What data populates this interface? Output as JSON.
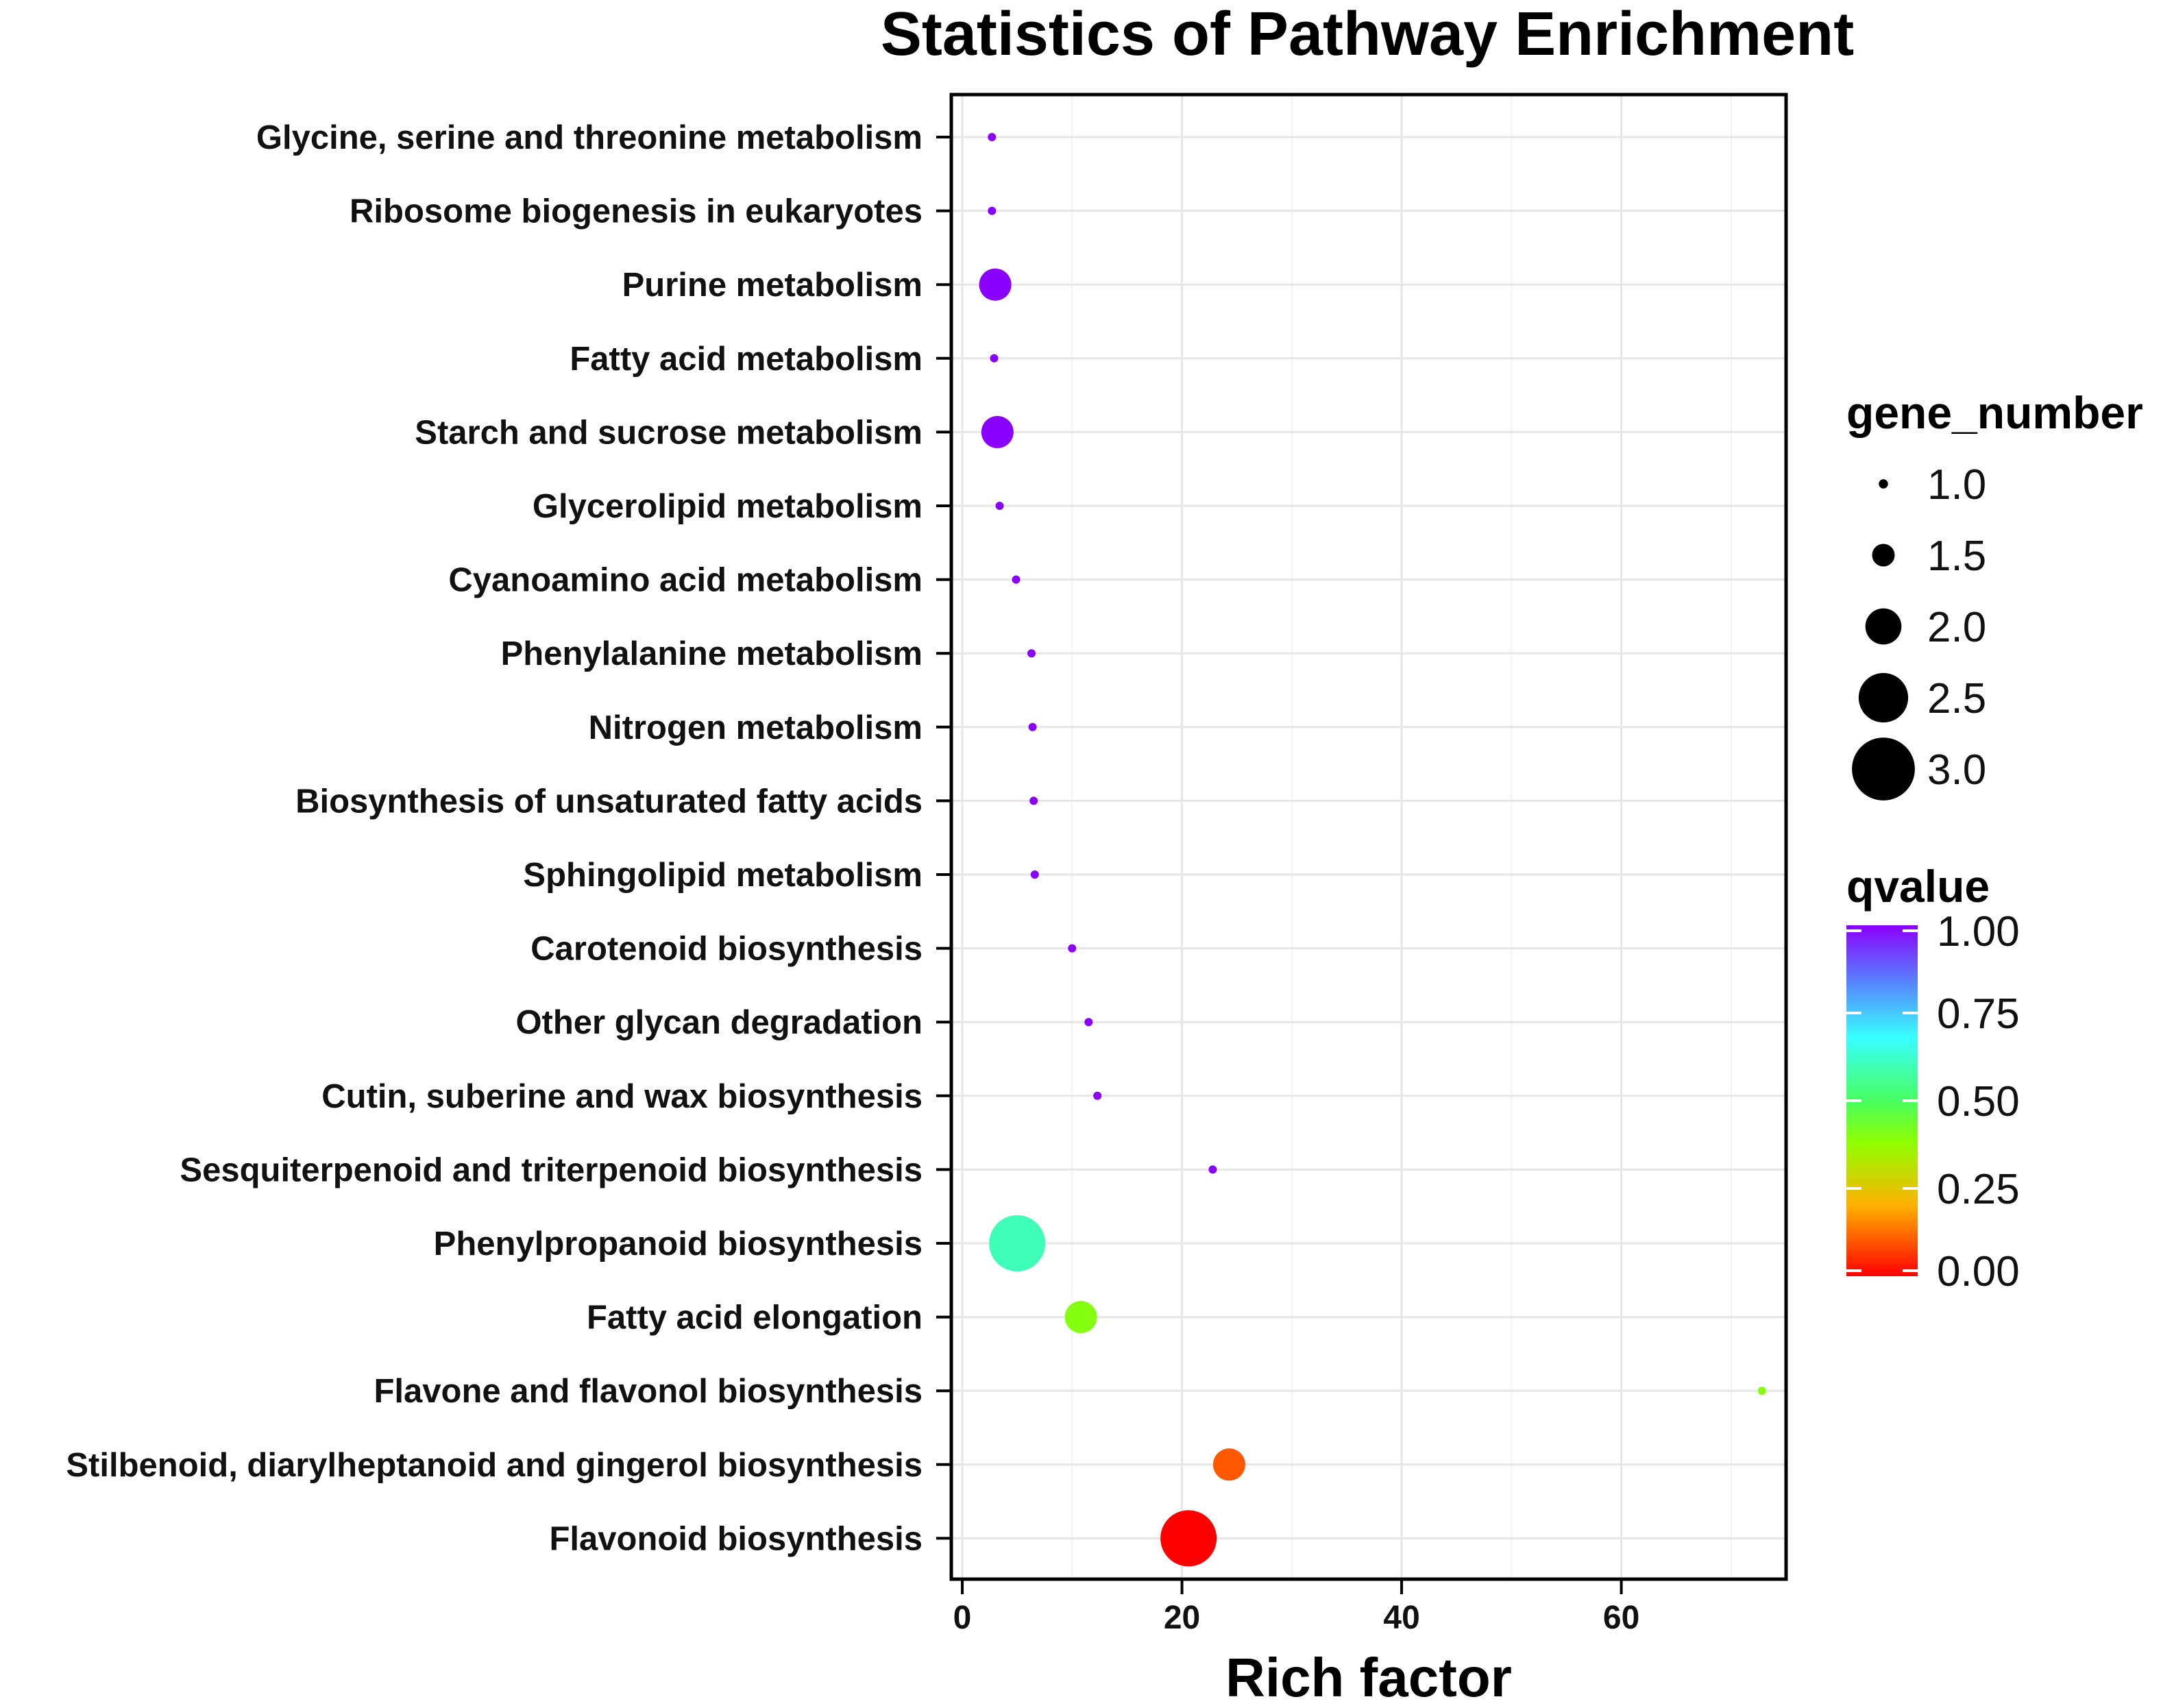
{
  "chart_data": {
    "type": "scatter",
    "title": "Statistics of Pathway Enrichment",
    "xlabel": "Rich factor",
    "ylabel": "",
    "xlim": [
      -1,
      75
    ],
    "xticks": [
      0,
      20,
      40,
      60
    ],
    "grid": true,
    "categories": [
      "Glycine, serine and threonine metabolism",
      "Ribosome biogenesis in eukaryotes",
      "Purine metabolism",
      "Fatty acid metabolism",
      "Starch and sucrose metabolism",
      "Glycerolipid metabolism",
      "Cyanoamino acid metabolism",
      "Phenylalanine metabolism",
      "Nitrogen metabolism",
      "Biosynthesis of unsaturated fatty acids",
      "Sphingolipid metabolism",
      "Carotenoid biosynthesis",
      "Other glycan degradation",
      "Cutin, suberine and wax biosynthesis",
      "Sesquiterpenoid and triterpenoid biosynthesis",
      "Phenylpropanoid biosynthesis",
      "Fatty acid elongation",
      "Flavone and flavonol biosynthesis",
      "Stilbenoid, diarylheptanoid and gingerol biosynthesis",
      "Flavonoid biosynthesis"
    ],
    "points": [
      {
        "category": "Glycine, serine and threonine metabolism",
        "rich_factor": 2.7,
        "gene_number": 1,
        "qvalue": 1.0
      },
      {
        "category": "Ribosome biogenesis in eukaryotes",
        "rich_factor": 2.7,
        "gene_number": 1,
        "qvalue": 1.0
      },
      {
        "category": "Purine metabolism",
        "rich_factor": 3.0,
        "gene_number": 2,
        "qvalue": 1.0
      },
      {
        "category": "Fatty acid metabolism",
        "rich_factor": 2.9,
        "gene_number": 1,
        "qvalue": 1.0
      },
      {
        "category": "Starch and sucrose metabolism",
        "rich_factor": 3.2,
        "gene_number": 2,
        "qvalue": 1.0
      },
      {
        "category": "Glycerolipid metabolism",
        "rich_factor": 3.4,
        "gene_number": 1,
        "qvalue": 1.0
      },
      {
        "category": "Cyanoamino acid metabolism",
        "rich_factor": 4.9,
        "gene_number": 1,
        "qvalue": 1.0
      },
      {
        "category": "Phenylalanine metabolism",
        "rich_factor": 6.3,
        "gene_number": 1,
        "qvalue": 1.0
      },
      {
        "category": "Nitrogen metabolism",
        "rich_factor": 6.4,
        "gene_number": 1,
        "qvalue": 1.0
      },
      {
        "category": "Biosynthesis of unsaturated fatty acids",
        "rich_factor": 6.5,
        "gene_number": 1,
        "qvalue": 1.0
      },
      {
        "category": "Sphingolipid metabolism",
        "rich_factor": 6.6,
        "gene_number": 1,
        "qvalue": 1.0
      },
      {
        "category": "Carotenoid biosynthesis",
        "rich_factor": 10.0,
        "gene_number": 1,
        "qvalue": 1.0
      },
      {
        "category": "Other glycan degradation",
        "rich_factor": 11.5,
        "gene_number": 1,
        "qvalue": 1.0
      },
      {
        "category": "Cutin, suberine and wax biosynthesis",
        "rich_factor": 12.3,
        "gene_number": 1,
        "qvalue": 1.0
      },
      {
        "category": "Sesquiterpenoid and triterpenoid biosynthesis",
        "rich_factor": 22.8,
        "gene_number": 1,
        "qvalue": 1.0
      },
      {
        "category": "Phenylpropanoid biosynthesis",
        "rich_factor": 5.0,
        "gene_number": 3,
        "qvalue": 0.6
      },
      {
        "category": "Fatty acid elongation",
        "rich_factor": 10.8,
        "gene_number": 2,
        "qvalue": 0.4
      },
      {
        "category": "Flavone and flavonol biosynthesis",
        "rich_factor": 72.8,
        "gene_number": 1,
        "qvalue": 0.4
      },
      {
        "category": "Stilbenoid, diarylheptanoid and gingerol biosynthesis",
        "rich_factor": 24.3,
        "gene_number": 2,
        "qvalue": 0.1
      },
      {
        "category": "Flavonoid biosynthesis",
        "rich_factor": 20.6,
        "gene_number": 3,
        "qvalue": 0.0
      }
    ],
    "legend_size": {
      "title": "gene_number",
      "values": [
        1.0,
        1.5,
        2.0,
        2.5,
        3.0
      ],
      "labels": [
        "1.0",
        "1.5",
        "2.0",
        "2.5",
        "3.0"
      ]
    },
    "legend_color": {
      "title": "qvalue",
      "values": [
        1.0,
        0.75,
        0.5,
        0.25,
        0.0
      ],
      "labels": [
        "1.00",
        "0.75",
        "0.50",
        "0.25",
        "0.00"
      ],
      "gradient": [
        "#8a00ff",
        "#4d8cff",
        "#38ffff",
        "#48ff48",
        "#90ff00",
        "#ffb000",
        "#ff0000"
      ]
    },
    "legend_position": "right"
  }
}
